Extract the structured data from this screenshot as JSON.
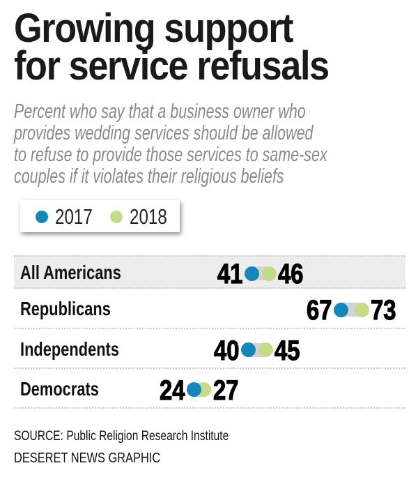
{
  "title_lines": [
    "Growing support",
    "for service refusals"
  ],
  "subtitle_lines": [
    "Percent who say that a business owner who",
    "provides wedding services should be allowed",
    "to refuse to provide those services to same-sex",
    "couples if it violates their religious beliefs"
  ],
  "colors": {
    "y2017": "#1487b8",
    "y2018": "#c4dc8a",
    "connector": "#d3d3d3",
    "highlight_row": "#ededed"
  },
  "chart_data": {
    "type": "dumbbell",
    "title": "Growing support for service refusals",
    "legend": [
      "2017",
      "2018"
    ],
    "legend_placement": "top-left",
    "unit": "percent",
    "categories": [
      "All Americans",
      "Republicans",
      "Independents",
      "Democrats"
    ],
    "series": [
      {
        "name": "2017",
        "values": [
          41,
          67,
          40,
          24
        ]
      },
      {
        "name": "2018",
        "values": [
          46,
          73,
          45,
          27
        ]
      }
    ]
  },
  "source": "SOURCE: Public Religion Research Institute",
  "credit": "DESERET NEWS GRAPHIC"
}
